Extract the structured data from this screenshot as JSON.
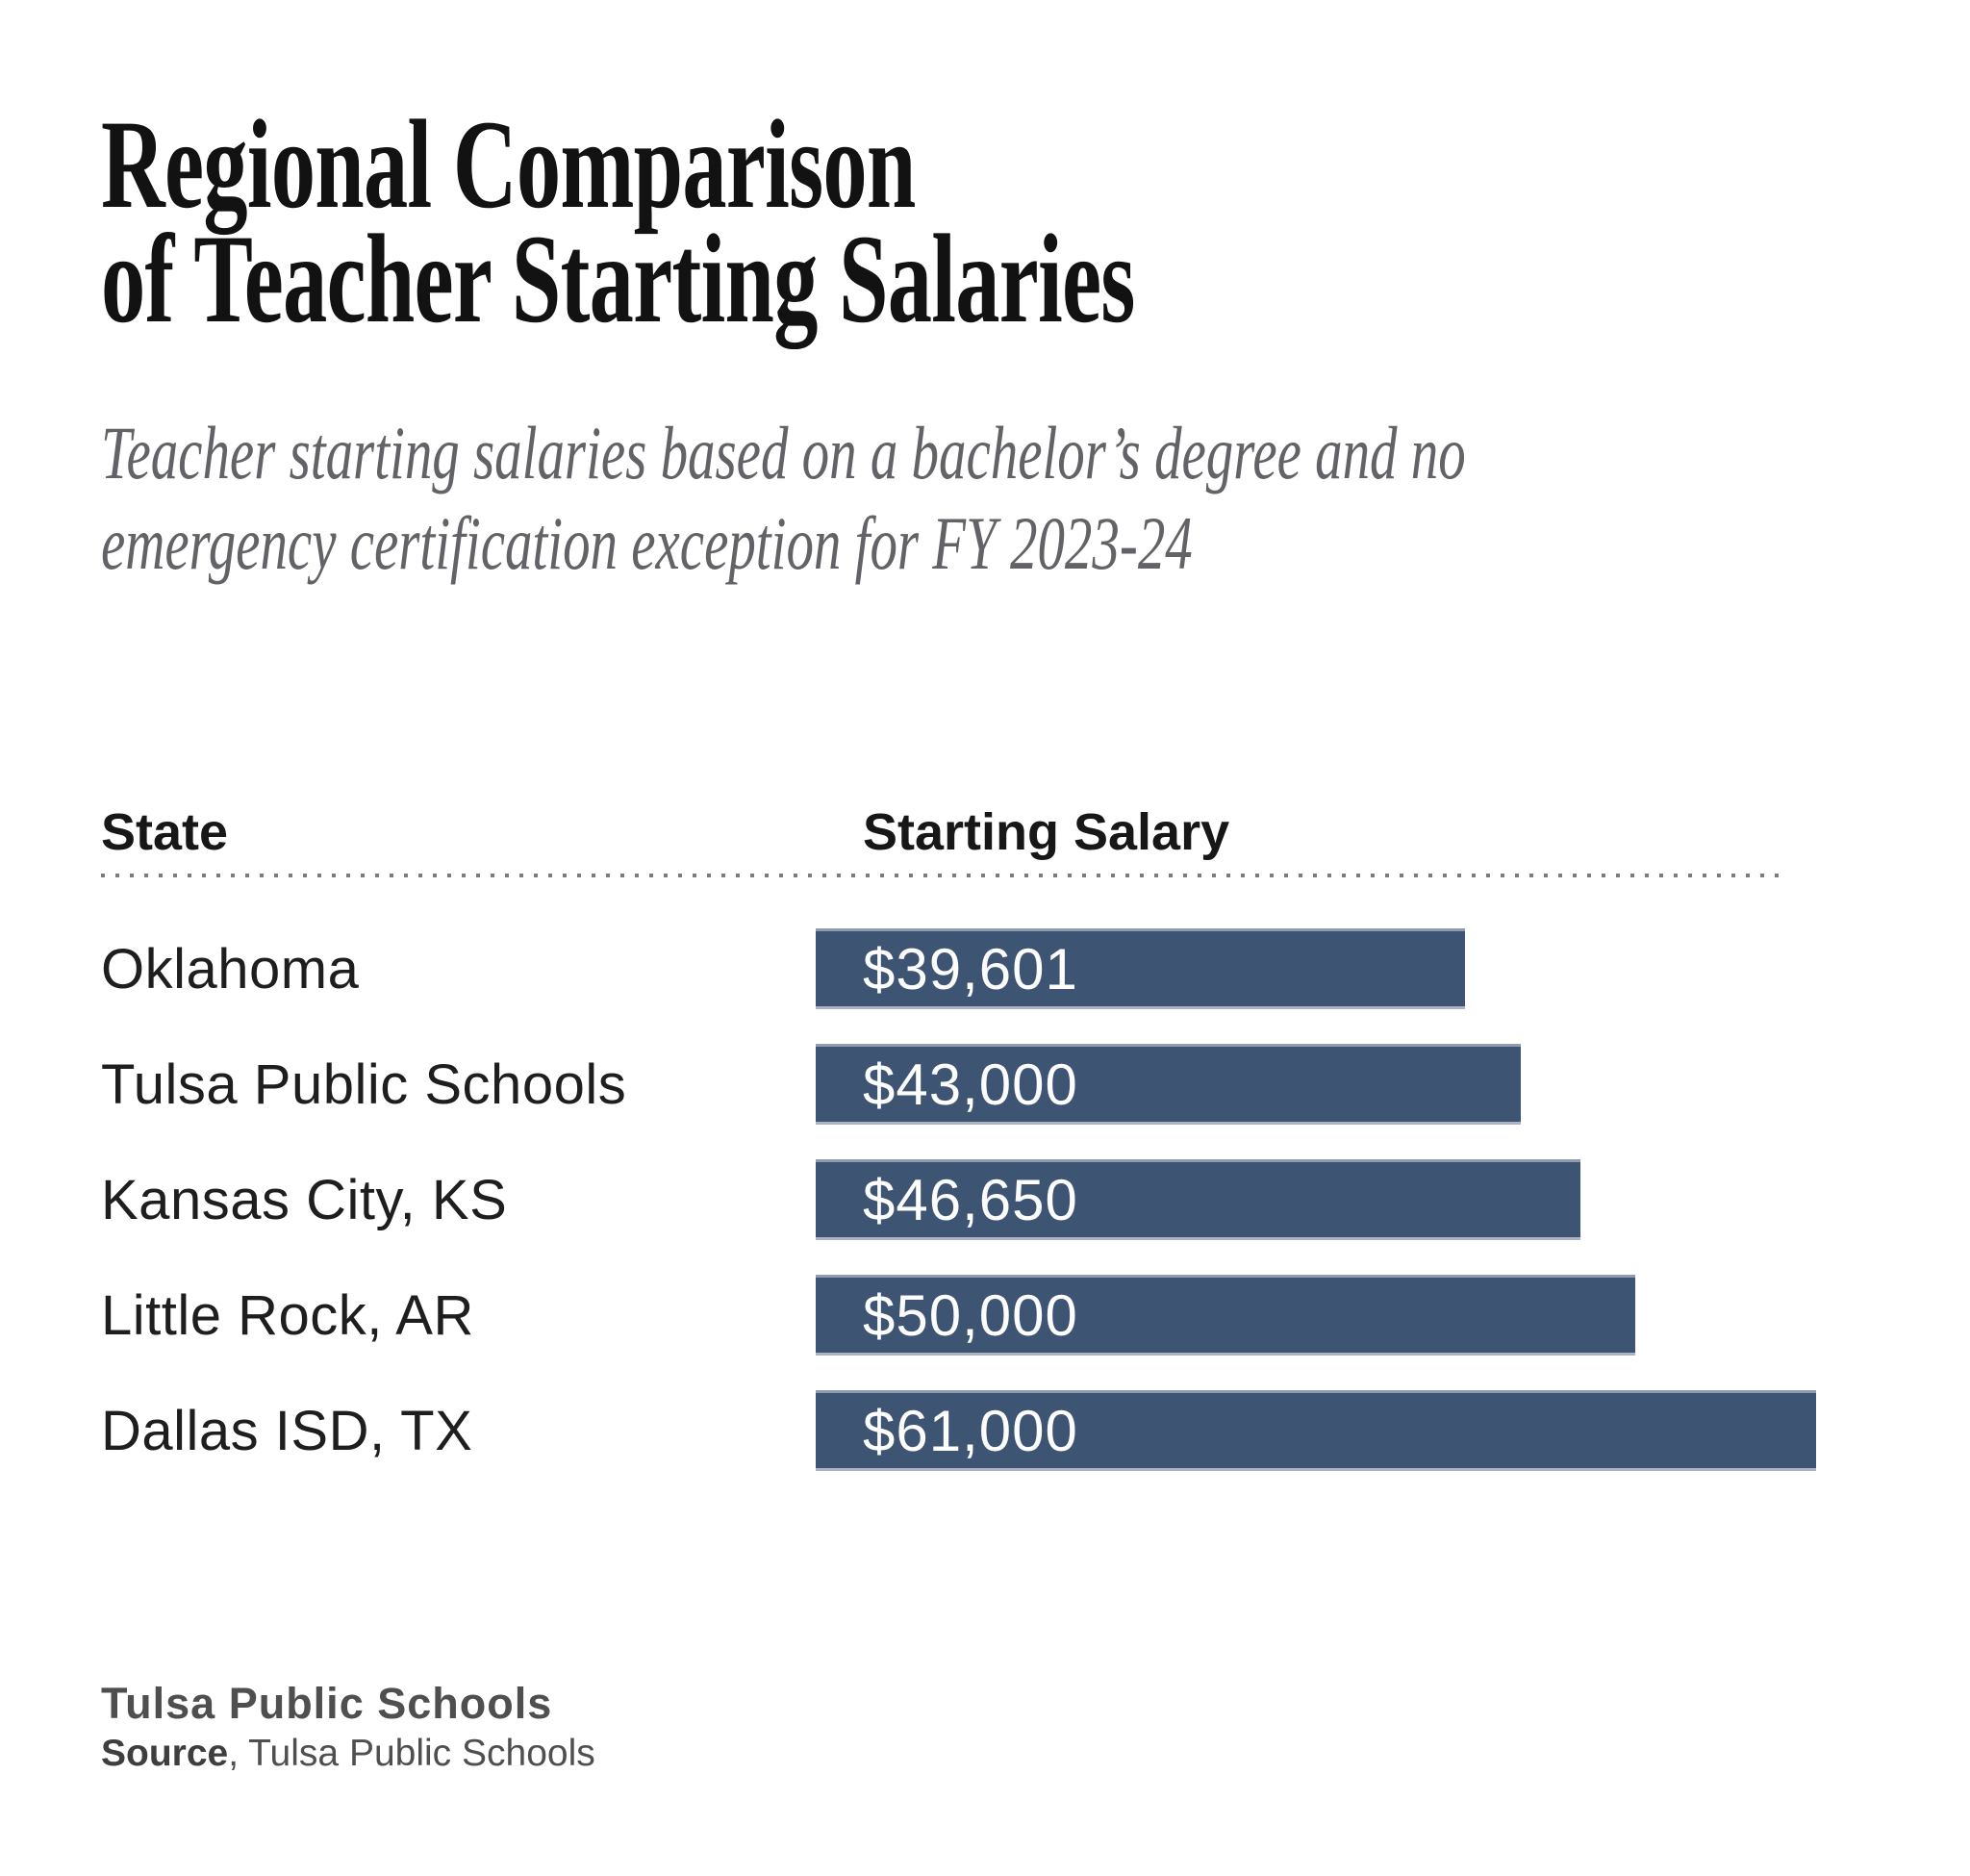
{
  "page": {
    "title_lines": [
      "Regional Comparison",
      "of Teacher Starting Salaries"
    ],
    "subtitle_lines": [
      "Teacher starting salaries based on a bachelor’s degree and no",
      "emergency certification exception for FY 2023-24"
    ]
  },
  "table": {
    "columns": [
      "State",
      "Starting Salary"
    ]
  },
  "chart_data": {
    "type": "bar",
    "orientation": "horizontal",
    "title": "Regional Comparison of Teacher Starting Salaries",
    "subtitle": "Teacher starting salaries based on a bachelor’s degree and no emergency certification exception for FY 2023-24",
    "categories": [
      "Oklahoma",
      "Tulsa Public Schools",
      "Kansas City, KS",
      "Little Rock, AR",
      "Dallas ISD, TX"
    ],
    "values": [
      39601,
      43000,
      46650,
      50000,
      61000
    ],
    "value_labels": [
      "$39,601",
      "$43,000",
      "$46,650",
      "$50,000",
      "$61,000"
    ],
    "xlabel": "Starting Salary",
    "ylabel": "State",
    "xlim": [
      0,
      61000
    ],
    "grid": false,
    "legend": false,
    "bar_color": "#3d5473",
    "bar_label_color": "#fdfdfd"
  },
  "footer": {
    "brand": "Tulsa Public Schools",
    "source_label": "Source",
    "source_rest": ", Tulsa Public Schools"
  },
  "colors": {
    "title": "#121212",
    "subtitle": "#636367",
    "header_text": "#171717",
    "row_label": "#1e1e1e",
    "divider": "#7c7c7c",
    "footer_text": "#4f4f4f",
    "background": "#ffffff"
  }
}
